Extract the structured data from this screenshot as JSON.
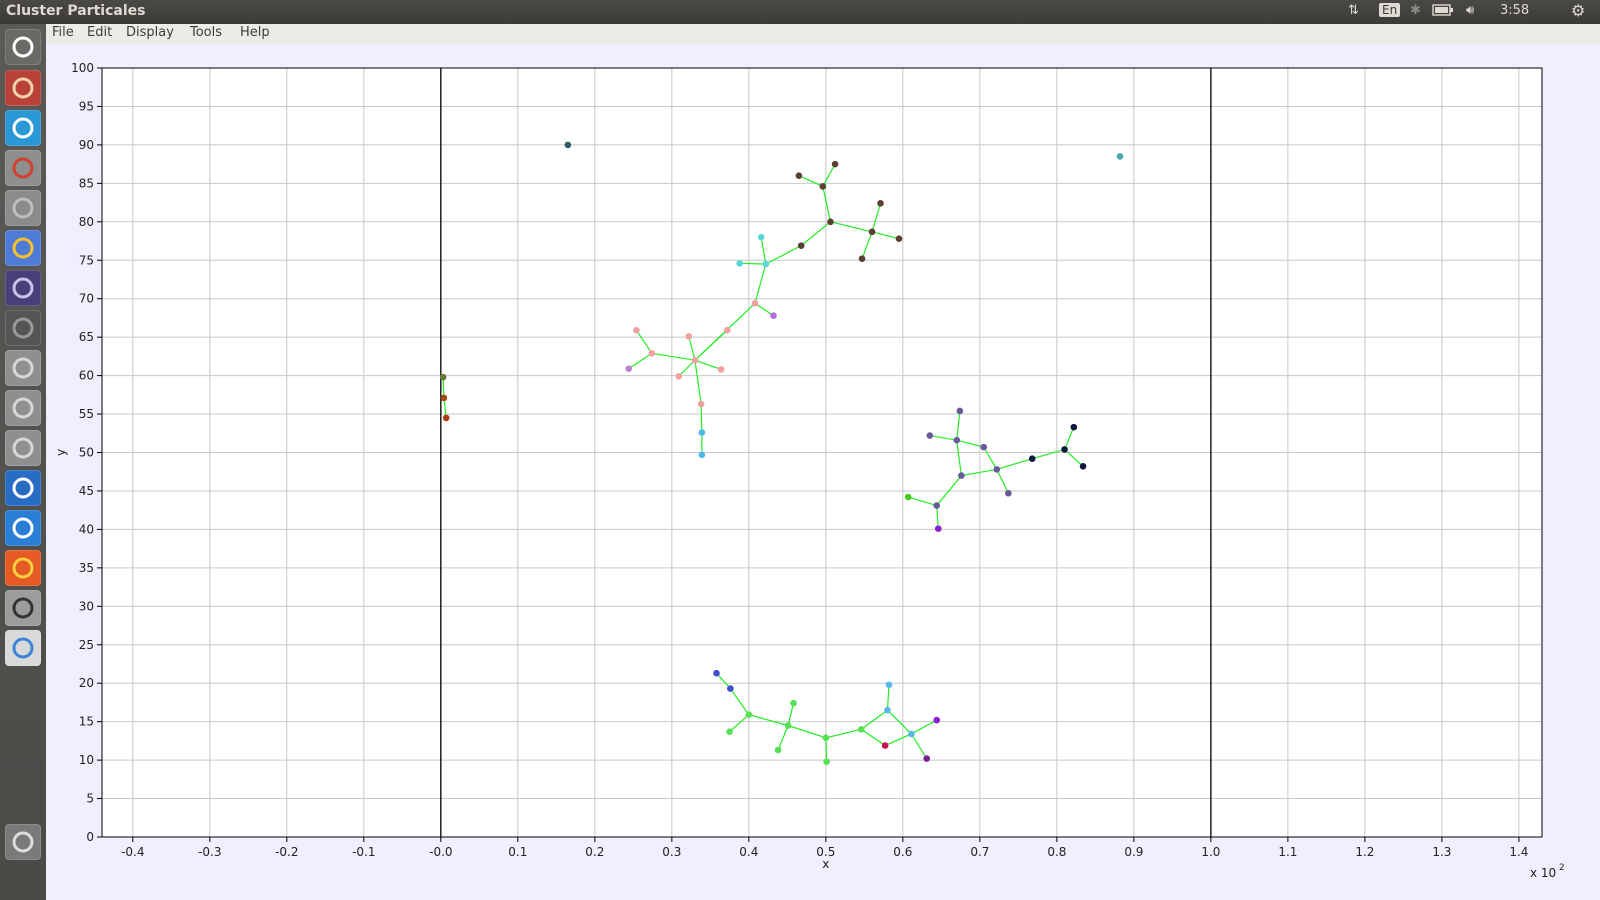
{
  "window": {
    "title": "Cluster Particales"
  },
  "indicators": {
    "lang": "En",
    "time": "3:58"
  },
  "menu": [
    "File",
    "Edit",
    "Display",
    "Tools",
    "Help"
  ],
  "launcher": [
    {
      "name": "dash-icon",
      "bg": "#6a6966",
      "fg": "#ffffff"
    },
    {
      "name": "files-icon",
      "bg": "#b8423a",
      "fg": "#f2d2a8"
    },
    {
      "name": "telegram-icon",
      "bg": "#2b98d6",
      "fg": "#ffffff"
    },
    {
      "name": "settings-tool-icon",
      "bg": "#8e8e8e",
      "fg": "#d0402c"
    },
    {
      "name": "help-icon",
      "bg": "#8b8b8b",
      "fg": "#bdbdbd"
    },
    {
      "name": "chrome-icon",
      "bg": "#4d7bd6",
      "fg": "#fbc02d"
    },
    {
      "name": "eclipse-icon",
      "bg": "#4a3f7a",
      "fg": "#c9c3e6"
    },
    {
      "name": "window-app-icon",
      "bg": "#555555",
      "fg": "#999999"
    },
    {
      "name": "drive-1-icon",
      "bg": "#8f8f8f",
      "fg": "#d6d6d6"
    },
    {
      "name": "drive-2-icon",
      "bg": "#8f8f8f",
      "fg": "#d6d6d6"
    },
    {
      "name": "drive-3-icon",
      "bg": "#8f8f8f",
      "fg": "#d6d6d6"
    },
    {
      "name": "r-icon",
      "bg": "#276dc2",
      "fg": "#ffffff"
    },
    {
      "name": "vscode-icon",
      "bg": "#2a7fd4",
      "fg": "#ffffff"
    },
    {
      "name": "firefox-icon",
      "bg": "#e65b23",
      "fg": "#ffcf40"
    },
    {
      "name": "java-tool-icon",
      "bg": "#9c9c9c",
      "fg": "#333333"
    },
    {
      "name": "colorful-app-icon",
      "bg": "#d9d9d9",
      "fg": "#3b84d8"
    },
    {
      "name": "trash-icon",
      "bg": "#7a7a7a",
      "fg": "#dddddd"
    }
  ],
  "chart_data": {
    "type": "scatter",
    "title": "",
    "xlabel": "x",
    "ylabel": "y",
    "x_multiplier": "x 10^2",
    "xlim": [
      -0.44,
      1.43
    ],
    "ylim": [
      0,
      100
    ],
    "xticks": [
      -0.4,
      -0.3,
      -0.2,
      -0.1,
      0.0,
      0.1,
      0.2,
      0.3,
      0.4,
      0.5,
      0.6,
      0.7,
      0.8,
      0.9,
      1.0,
      1.1,
      1.2,
      1.3,
      1.4
    ],
    "xtick_labels": [
      "-0.4",
      "-0.3",
      "-0.2",
      "-0.1",
      "-0.0",
      "0.1",
      "0.2",
      "0.3",
      "0.4",
      "0.5",
      "0.6",
      "0.7",
      "0.8",
      "0.9",
      "1.0",
      "1.1",
      "1.2",
      "1.3",
      "1.4"
    ],
    "yticks": [
      0,
      5,
      10,
      15,
      20,
      25,
      30,
      35,
      40,
      45,
      50,
      55,
      60,
      65,
      70,
      75,
      80,
      85,
      90,
      95,
      100
    ],
    "boundary_lines_x": [
      0.0,
      1.0
    ],
    "grid": true,
    "edge_color": "#22ee22",
    "points": [
      {
        "id": "p1",
        "x": 0.165,
        "y": 90.0,
        "color": "#2e5a5e"
      },
      {
        "id": "p2",
        "x": 0.882,
        "y": 88.5,
        "color": "#4aa5b0"
      },
      {
        "id": "p3",
        "x": 0.003,
        "y": 59.8,
        "color": "#6a7a3a"
      },
      {
        "id": "p4",
        "x": 0.004,
        "y": 57.1,
        "color": "#a04a10"
      },
      {
        "id": "p5",
        "x": 0.007,
        "y": 54.5,
        "color": "#b13a15"
      },
      {
        "id": "b1",
        "x": 0.465,
        "y": 86.0,
        "color": "#5a4030"
      },
      {
        "id": "b2",
        "x": 0.512,
        "y": 87.5,
        "color": "#5a4030"
      },
      {
        "id": "b3",
        "x": 0.496,
        "y": 84.6,
        "color": "#5a4030"
      },
      {
        "id": "b4",
        "x": 0.506,
        "y": 80.0,
        "color": "#5a4030"
      },
      {
        "id": "b5",
        "x": 0.571,
        "y": 82.4,
        "color": "#5a4030"
      },
      {
        "id": "b6",
        "x": 0.56,
        "y": 78.7,
        "color": "#5a4030"
      },
      {
        "id": "b7",
        "x": 0.595,
        "y": 77.8,
        "color": "#5a4030"
      },
      {
        "id": "b8",
        "x": 0.547,
        "y": 75.2,
        "color": "#5a4030"
      },
      {
        "id": "b9",
        "x": 0.468,
        "y": 76.9,
        "color": "#5a4030"
      },
      {
        "id": "c1",
        "x": 0.416,
        "y": 78.0,
        "color": "#5ad6d6"
      },
      {
        "id": "c2",
        "x": 0.388,
        "y": 74.6,
        "color": "#5ad6d6"
      },
      {
        "id": "c3",
        "x": 0.422,
        "y": 74.5,
        "color": "#5ad6d6"
      },
      {
        "id": "k1",
        "x": 0.408,
        "y": 69.4,
        "color": "#f2a0a0"
      },
      {
        "id": "v1",
        "x": 0.432,
        "y": 67.8,
        "color": "#b070e0"
      },
      {
        "id": "k2",
        "x": 0.372,
        "y": 65.9,
        "color": "#f2a0a0"
      },
      {
        "id": "k3",
        "x": 0.254,
        "y": 65.9,
        "color": "#f2a0a0"
      },
      {
        "id": "k4",
        "x": 0.322,
        "y": 65.1,
        "color": "#f2a0a0"
      },
      {
        "id": "k5",
        "x": 0.274,
        "y": 62.9,
        "color": "#f2a0a0"
      },
      {
        "id": "k6",
        "x": 0.33,
        "y": 62.0,
        "color": "#f2a0a0"
      },
      {
        "id": "v2",
        "x": 0.244,
        "y": 60.9,
        "color": "#c080d0"
      },
      {
        "id": "k7",
        "x": 0.364,
        "y": 60.8,
        "color": "#f2a0a0"
      },
      {
        "id": "k8",
        "x": 0.309,
        "y": 59.9,
        "color": "#f2a0a0"
      },
      {
        "id": "k9",
        "x": 0.338,
        "y": 56.3,
        "color": "#f2a0a0"
      },
      {
        "id": "s1",
        "x": 0.339,
        "y": 52.6,
        "color": "#4ab8e8"
      },
      {
        "id": "s2",
        "x": 0.339,
        "y": 49.7,
        "color": "#4ab8e8"
      },
      {
        "id": "g1",
        "x": 0.674,
        "y": 55.4,
        "color": "#6a5a9a"
      },
      {
        "id": "g2",
        "x": 0.635,
        "y": 52.2,
        "color": "#6a5a9a"
      },
      {
        "id": "g3",
        "x": 0.67,
        "y": 51.6,
        "color": "#6a5a9a"
      },
      {
        "id": "g4",
        "x": 0.705,
        "y": 50.7,
        "color": "#6a5a9a"
      },
      {
        "id": "g5",
        "x": 0.722,
        "y": 47.8,
        "color": "#6a5a9a"
      },
      {
        "id": "g6",
        "x": 0.676,
        "y": 47.0,
        "color": "#6a5a9a"
      },
      {
        "id": "g7",
        "x": 0.737,
        "y": 44.7,
        "color": "#6a5a9a"
      },
      {
        "id": "g8",
        "x": 0.644,
        "y": 43.1,
        "color": "#6a5a9a"
      },
      {
        "id": "gg",
        "x": 0.607,
        "y": 44.2,
        "color": "#44cc22"
      },
      {
        "id": "gv",
        "x": 0.646,
        "y": 40.1,
        "color": "#8a20d0"
      },
      {
        "id": "n1",
        "x": 0.768,
        "y": 49.2,
        "color": "#101840"
      },
      {
        "id": "n2",
        "x": 0.81,
        "y": 50.4,
        "color": "#101840"
      },
      {
        "id": "n3",
        "x": 0.822,
        "y": 53.3,
        "color": "#101840"
      },
      {
        "id": "n4",
        "x": 0.834,
        "y": 48.2,
        "color": "#101840"
      },
      {
        "id": "q1",
        "x": 0.358,
        "y": 21.3,
        "color": "#4050d0"
      },
      {
        "id": "q2",
        "x": 0.376,
        "y": 19.3,
        "color": "#4050d0"
      },
      {
        "id": "q3",
        "x": 0.4,
        "y": 15.9,
        "color": "#55e055"
      },
      {
        "id": "q4",
        "x": 0.458,
        "y": 17.4,
        "color": "#55e055"
      },
      {
        "id": "q5",
        "x": 0.375,
        "y": 13.7,
        "color": "#55e055"
      },
      {
        "id": "q6",
        "x": 0.451,
        "y": 14.5,
        "color": "#55e055"
      },
      {
        "id": "q7",
        "x": 0.438,
        "y": 11.3,
        "color": "#55e055"
      },
      {
        "id": "q8",
        "x": 0.5,
        "y": 12.9,
        "color": "#55e055"
      },
      {
        "id": "q9",
        "x": 0.501,
        "y": 9.8,
        "color": "#55e055"
      },
      {
        "id": "q10",
        "x": 0.546,
        "y": 14.0,
        "color": "#55e055"
      },
      {
        "id": "u1",
        "x": 0.582,
        "y": 19.8,
        "color": "#58b8e8"
      },
      {
        "id": "u2",
        "x": 0.58,
        "y": 16.5,
        "color": "#58b8e8"
      },
      {
        "id": "u3",
        "x": 0.611,
        "y": 13.4,
        "color": "#58b8e8"
      },
      {
        "id": "r1",
        "x": 0.577,
        "y": 11.9,
        "color": "#cc1050"
      },
      {
        "id": "w1",
        "x": 0.644,
        "y": 15.2,
        "color": "#8a20d0"
      },
      {
        "id": "w2",
        "x": 0.631,
        "y": 10.2,
        "color": "#7a2090"
      }
    ],
    "edges": [
      [
        "p3",
        "p4"
      ],
      [
        "p4",
        "p5"
      ],
      [
        "b1",
        "b3"
      ],
      [
        "b2",
        "b3"
      ],
      [
        "b3",
        "b4"
      ],
      [
        "b4",
        "b6"
      ],
      [
        "b5",
        "b6"
      ],
      [
        "b6",
        "b7"
      ],
      [
        "b6",
        "b8"
      ],
      [
        "b4",
        "b9"
      ],
      [
        "b9",
        "c3"
      ],
      [
        "c1",
        "c3"
      ],
      [
        "c2",
        "c3"
      ],
      [
        "c3",
        "k1"
      ],
      [
        "k1",
        "v1"
      ],
      [
        "k1",
        "k6"
      ],
      [
        "k2",
        "k6"
      ],
      [
        "k4",
        "k6"
      ],
      [
        "k5",
        "k6"
      ],
      [
        "k3",
        "k5"
      ],
      [
        "k5",
        "v2"
      ],
      [
        "k6",
        "k7"
      ],
      [
        "k6",
        "k8"
      ],
      [
        "k6",
        "k9"
      ],
      [
        "k9",
        "s1"
      ],
      [
        "s1",
        "s2"
      ],
      [
        "g1",
        "g3"
      ],
      [
        "g2",
        "g3"
      ],
      [
        "g3",
        "g4"
      ],
      [
        "g3",
        "g6"
      ],
      [
        "g4",
        "g5"
      ],
      [
        "g5",
        "g6"
      ],
      [
        "g5",
        "g7"
      ],
      [
        "g6",
        "g8"
      ],
      [
        "g8",
        "gg"
      ],
      [
        "g8",
        "gv"
      ],
      [
        "g5",
        "n1"
      ],
      [
        "n1",
        "n2"
      ],
      [
        "n2",
        "n3"
      ],
      [
        "n2",
        "n4"
      ],
      [
        "q1",
        "q2"
      ],
      [
        "q2",
        "q3"
      ],
      [
        "q3",
        "q5"
      ],
      [
        "q3",
        "q6"
      ],
      [
        "q4",
        "q6"
      ],
      [
        "q6",
        "q7"
      ],
      [
        "q6",
        "q8"
      ],
      [
        "q8",
        "q9"
      ],
      [
        "q8",
        "q10"
      ],
      [
        "q10",
        "u2"
      ],
      [
        "q10",
        "r1"
      ],
      [
        "u1",
        "u2"
      ],
      [
        "u2",
        "u3"
      ],
      [
        "u3",
        "r1"
      ],
      [
        "u3",
        "w1"
      ],
      [
        "u3",
        "w2"
      ]
    ]
  }
}
